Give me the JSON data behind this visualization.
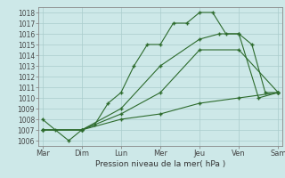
{
  "title": "",
  "xlabel": "Pression niveau de la mer( hPa )",
  "ylabel": "",
  "background_color": "#cde8e8",
  "grid_color": "#aacccc",
  "line_color": "#2d6b2d",
  "ylim": [
    1005.5,
    1018.5
  ],
  "xlim": [
    -0.1,
    6.1
  ],
  "x_ticks": [
    0,
    1,
    2,
    3,
    4,
    5,
    6
  ],
  "x_labels": [
    "Mar",
    "Dim",
    "Lun",
    "Mer",
    "Jeu",
    "Ven",
    "Sam"
  ],
  "y_ticks": [
    1006,
    1007,
    1008,
    1009,
    1010,
    1011,
    1012,
    1013,
    1014,
    1015,
    1016,
    1017,
    1018
  ],
  "series": [
    {
      "x": [
        0,
        0.33,
        0.67,
        1.0,
        1.33,
        1.67,
        2.0,
        2.33,
        2.67,
        3.0,
        3.33,
        3.67,
        4.0,
        4.33,
        4.67,
        5.0,
        5.33,
        5.67,
        6.0
      ],
      "y": [
        1008,
        1007,
        1006,
        1007,
        1007.5,
        1009.5,
        1010.5,
        1013,
        1015,
        1015,
        1017,
        1017,
        1018,
        1018,
        1016,
        1016,
        1015,
        1010.5,
        1010.5
      ]
    },
    {
      "x": [
        0,
        1,
        2,
        3,
        4,
        4.5,
        5.0,
        5.5,
        6.0
      ],
      "y": [
        1007,
        1007,
        1009,
        1013,
        1015.5,
        1016,
        1016,
        1010,
        1010.5
      ]
    },
    {
      "x": [
        0,
        1,
        2,
        3,
        4,
        5,
        6
      ],
      "y": [
        1007,
        1007,
        1008.5,
        1010.5,
        1014.5,
        1014.5,
        1010.5
      ]
    },
    {
      "x": [
        0,
        1,
        2,
        3,
        4,
        5,
        6
      ],
      "y": [
        1007,
        1007,
        1008,
        1008.5,
        1009.5,
        1010,
        1010.5
      ]
    }
  ]
}
